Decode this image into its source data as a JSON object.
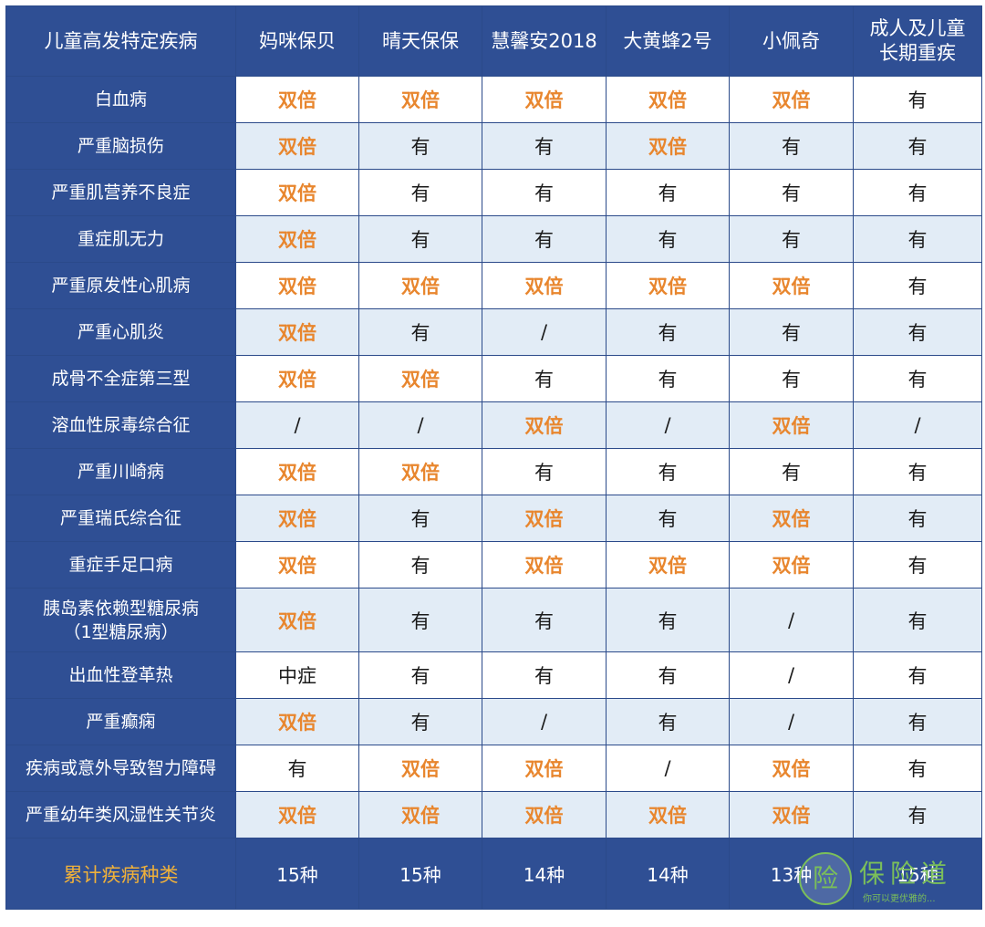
{
  "table": {
    "header": {
      "disease_col": "儿童高发特定疾病",
      "products": [
        "妈咪保贝",
        "晴天保保",
        "慧馨安2018",
        "大黄蜂2号",
        "小佩奇",
        "成人及儿童\n长期重疾"
      ]
    },
    "rows": [
      {
        "disease": "白血病",
        "values": [
          "双倍",
          "双倍",
          "双倍",
          "双倍",
          "双倍",
          "有"
        ]
      },
      {
        "disease": "严重脑损伤",
        "values": [
          "双倍",
          "有",
          "有",
          "双倍",
          "有",
          "有"
        ]
      },
      {
        "disease": "严重肌营养不良症",
        "values": [
          "双倍",
          "有",
          "有",
          "有",
          "有",
          "有"
        ]
      },
      {
        "disease": "重症肌无力",
        "values": [
          "双倍",
          "有",
          "有",
          "有",
          "有",
          "有"
        ]
      },
      {
        "disease": "严重原发性心肌病",
        "values": [
          "双倍",
          "双倍",
          "双倍",
          "双倍",
          "双倍",
          "有"
        ]
      },
      {
        "disease": "严重心肌炎",
        "values": [
          "双倍",
          "有",
          "/",
          "有",
          "有",
          "有"
        ]
      },
      {
        "disease": "成骨不全症第三型",
        "values": [
          "双倍",
          "双倍",
          "有",
          "有",
          "有",
          "有"
        ]
      },
      {
        "disease": "溶血性尿毒综合征",
        "values": [
          "/",
          "/",
          "双倍",
          "/",
          "双倍",
          "/"
        ]
      },
      {
        "disease": "严重川崎病",
        "values": [
          "双倍",
          "双倍",
          "有",
          "有",
          "有",
          "有"
        ]
      },
      {
        "disease": "严重瑞氏综合征",
        "values": [
          "双倍",
          "有",
          "双倍",
          "有",
          "双倍",
          "有"
        ]
      },
      {
        "disease": "重症手足口病",
        "values": [
          "双倍",
          "有",
          "双倍",
          "双倍",
          "双倍",
          "有"
        ]
      },
      {
        "disease": "胰岛素依赖型糖尿病\n（1型糖尿病）",
        "values": [
          "双倍",
          "有",
          "有",
          "有",
          "/",
          "有"
        ]
      },
      {
        "disease": "出血性登革热",
        "values": [
          "中症",
          "有",
          "有",
          "有",
          "/",
          "有"
        ]
      },
      {
        "disease": "严重癫痫",
        "values": [
          "双倍",
          "有",
          "/",
          "有",
          "/",
          "有"
        ]
      },
      {
        "disease": "疾病或意外导致智力障碍",
        "values": [
          "有",
          "双倍",
          "双倍",
          "/",
          "双倍",
          "有"
        ]
      },
      {
        "disease": "严重幼年类风湿性关节炎",
        "values": [
          "双倍",
          "双倍",
          "双倍",
          "双倍",
          "双倍",
          "有"
        ]
      }
    ],
    "footer": {
      "label": "累计疾病种类",
      "values": [
        "15种",
        "15种",
        "14种",
        "14种",
        "13种",
        "15种"
      ]
    }
  },
  "watermark": {
    "icon_char": "险",
    "text": "保险道",
    "sub": "你可以更优雅的..."
  },
  "colors": {
    "header_bg": "#2f4f94",
    "double_text": "#e8862e",
    "footer_label": "#f0b13a",
    "row_alt_bg": "#e2ecf6"
  }
}
